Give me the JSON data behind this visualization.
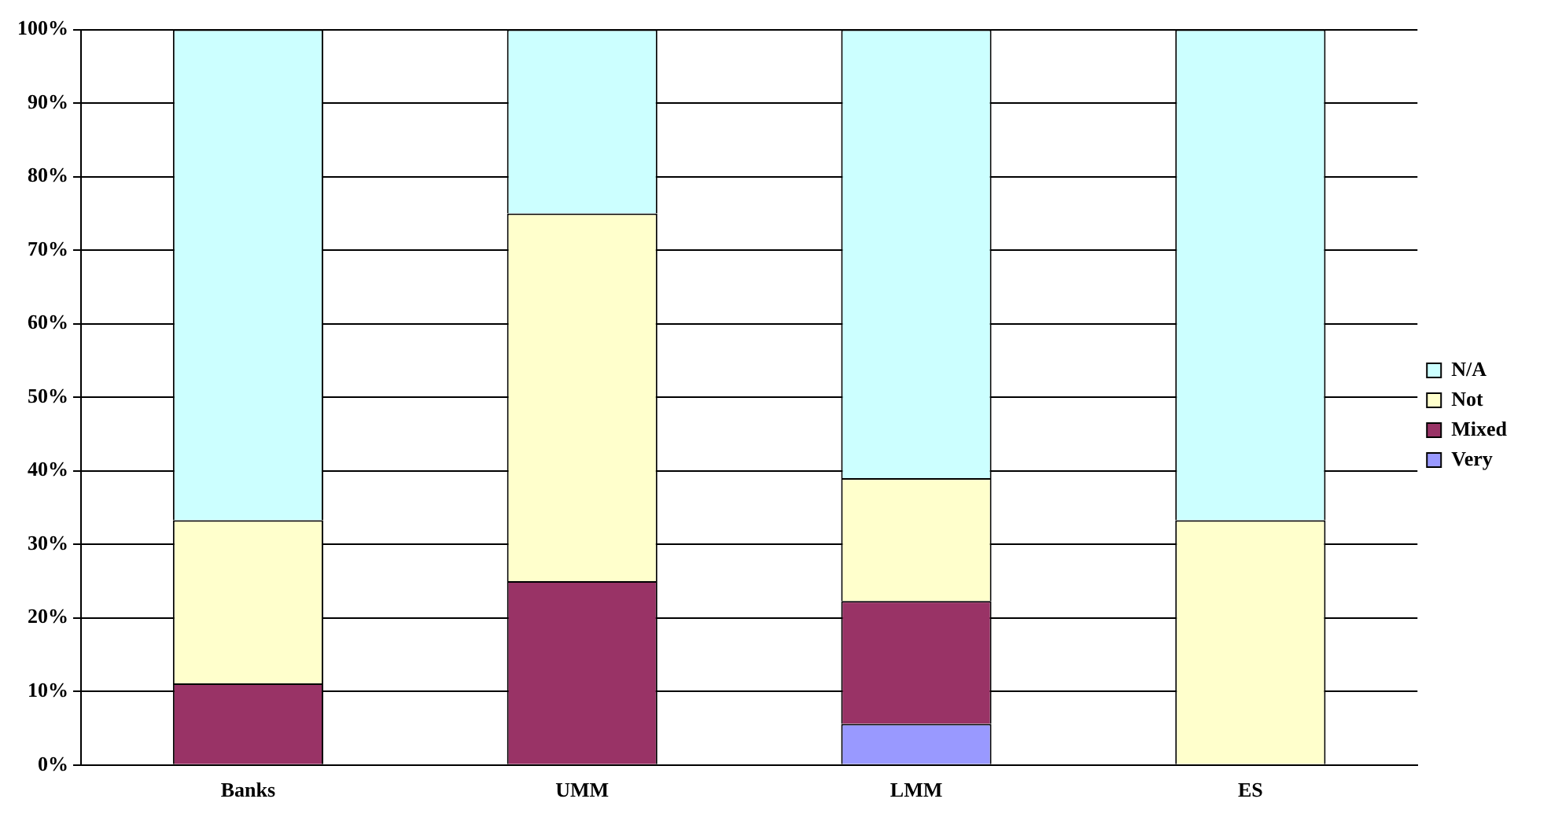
{
  "chart_data": {
    "type": "bar",
    "stacked": true,
    "categories": [
      "Banks",
      "UMM",
      "LMM",
      "ES"
    ],
    "series": [
      {
        "name": "Very",
        "color": "#9999ff",
        "values": [
          null,
          null,
          5.6,
          null
        ]
      },
      {
        "name": "Mixed",
        "color": "#993366",
        "values": [
          11.1,
          25,
          16.7,
          0
        ]
      },
      {
        "name": "Not",
        "color": "#ffffcc",
        "values": [
          22.2,
          50,
          16.7,
          33.3
        ]
      },
      {
        "name": "N/A",
        "color": "#ccffff",
        "values": [
          66.7,
          25,
          61,
          66.7
        ]
      }
    ],
    "ylim": [
      0,
      100
    ],
    "yticks": [
      {
        "value": 0,
        "label": "0%"
      },
      {
        "value": 10,
        "label": "10%"
      },
      {
        "value": 20,
        "label": "20%"
      },
      {
        "value": 30,
        "label": "30%"
      },
      {
        "value": 40,
        "label": "40%"
      },
      {
        "value": 50,
        "label": "50%"
      },
      {
        "value": 60,
        "label": "60%"
      },
      {
        "value": 70,
        "label": "70%"
      },
      {
        "value": 80,
        "label": "80%"
      },
      {
        "value": 90,
        "label": "90%"
      },
      {
        "value": 100,
        "label": "100%"
      }
    ],
    "grid": "y",
    "legend": "right"
  }
}
